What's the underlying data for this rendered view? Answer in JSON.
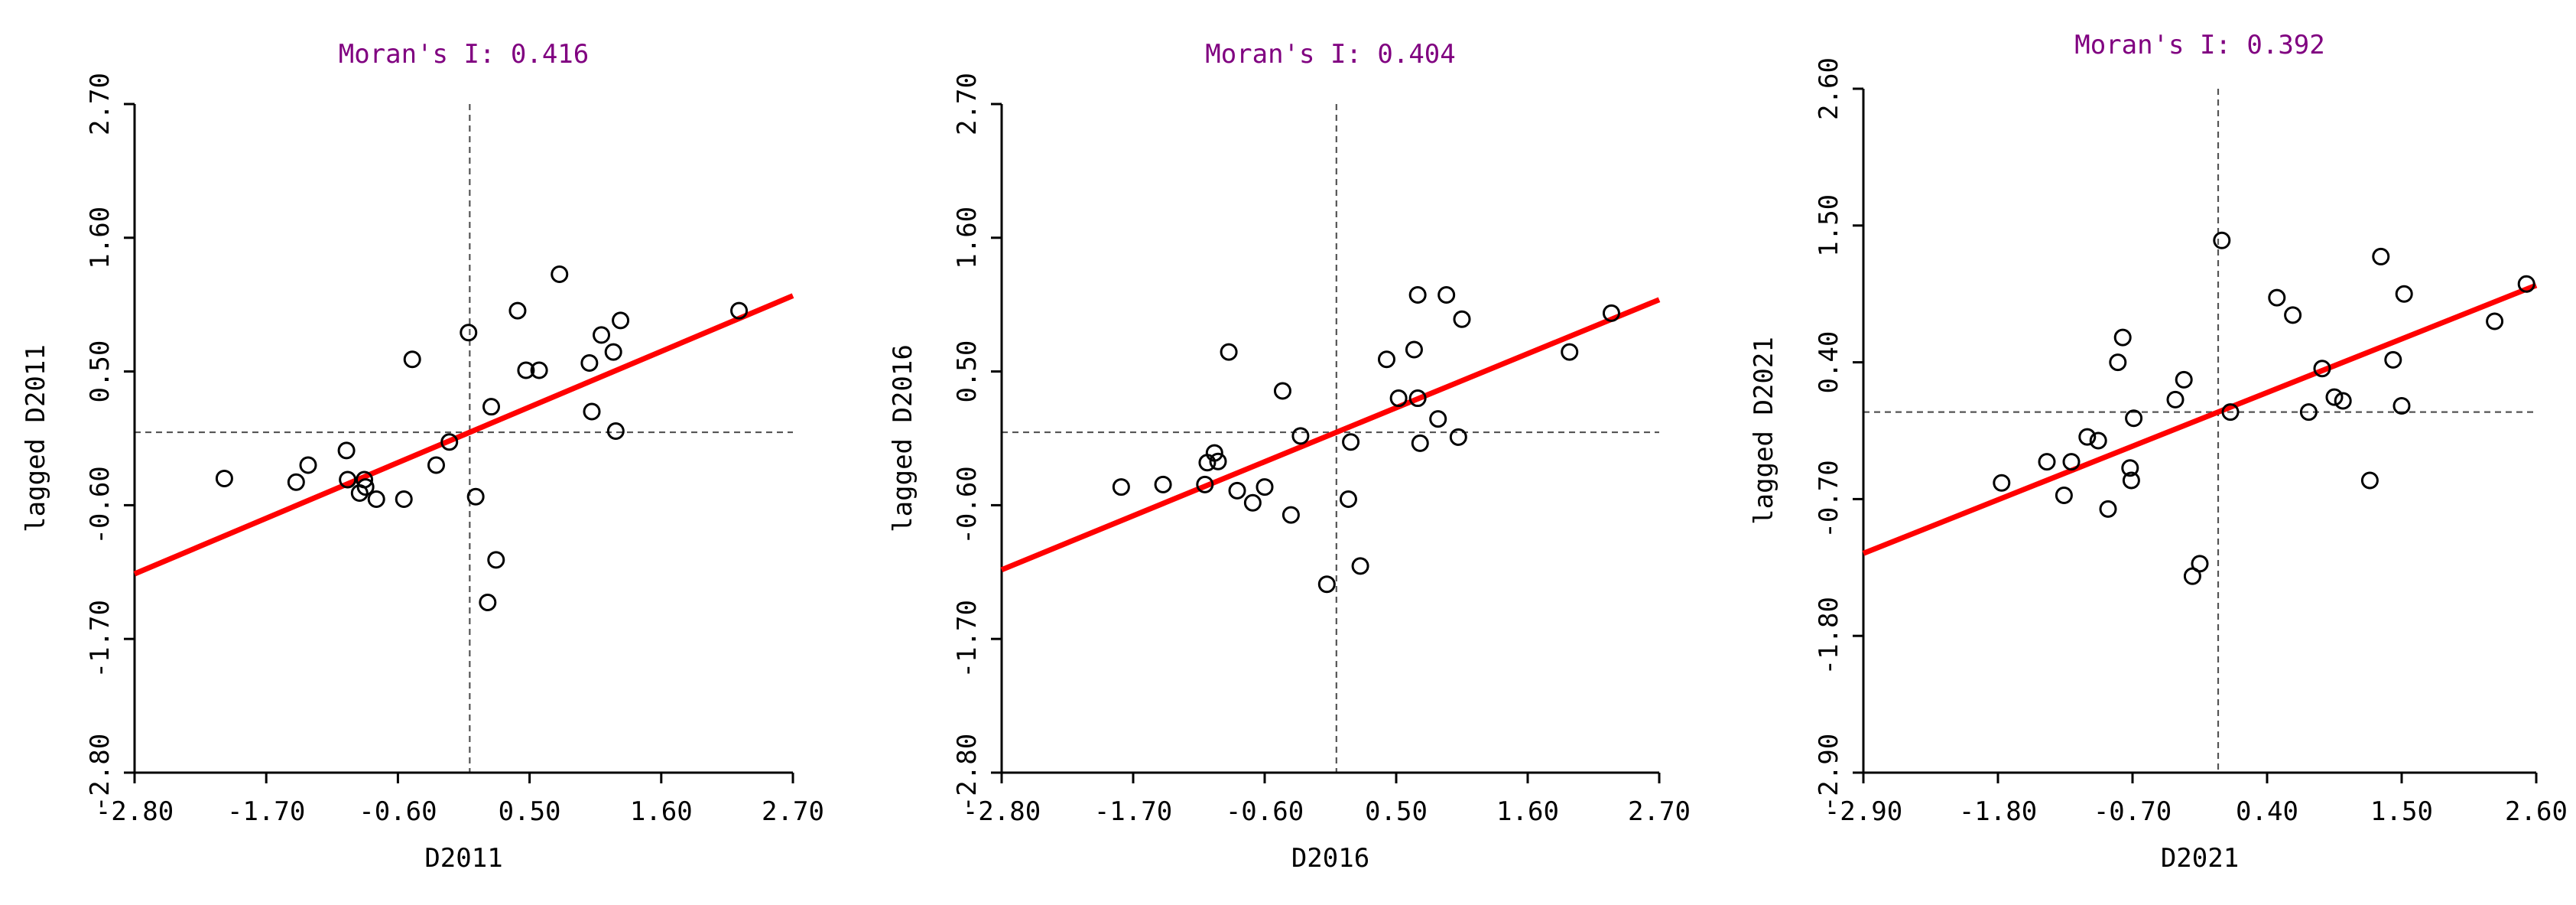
{
  "chart_data": [
    {
      "type": "scatter",
      "title": "Moran's I: 0.416",
      "xlabel": "D2011",
      "ylabel": "lagged D2011",
      "xlim": [
        -2.8,
        2.7
      ],
      "ylim": [
        -2.8,
        2.7
      ],
      "xticks": [
        "-2.80",
        "-1.70",
        "-0.60",
        "0.50",
        "1.60",
        "2.70"
      ],
      "yticks": [
        "-2.80",
        "-1.70",
        "-0.60",
        "0.50",
        "1.60",
        "2.70"
      ],
      "crosshair": [
        0,
        0
      ],
      "slope": 0.416,
      "points": [
        [
          -2.05,
          -0.38
        ],
        [
          -1.45,
          -0.41
        ],
        [
          -1.35,
          -0.27
        ],
        [
          -1.03,
          -0.15
        ],
        [
          -1.02,
          -0.39
        ],
        [
          -0.92,
          -0.5
        ],
        [
          -0.88,
          -0.39
        ],
        [
          -0.87,
          -0.45
        ],
        [
          -0.78,
          -0.55
        ],
        [
          -0.55,
          -0.55
        ],
        [
          -0.48,
          0.6
        ],
        [
          -0.28,
          -0.27
        ],
        [
          -0.17,
          -0.08
        ],
        [
          -0.01,
          0.82
        ],
        [
          0.05,
          -0.53
        ],
        [
          0.15,
          -1.4
        ],
        [
          0.18,
          0.21
        ],
        [
          0.22,
          -1.05
        ],
        [
          0.4,
          1.0
        ],
        [
          0.47,
          0.51
        ],
        [
          0.58,
          0.51
        ],
        [
          0.75,
          1.3
        ],
        [
          1.0,
          0.57
        ],
        [
          1.02,
          0.17
        ],
        [
          1.1,
          0.8
        ],
        [
          1.2,
          0.66
        ],
        [
          1.22,
          0.01
        ],
        [
          1.26,
          0.92
        ],
        [
          2.25,
          1.0
        ]
      ]
    },
    {
      "type": "scatter",
      "title": "Moran's I: 0.404",
      "xlabel": "D2016",
      "ylabel": "lagged D2016",
      "xlim": [
        -2.8,
        2.7
      ],
      "ylim": [
        -2.8,
        2.7
      ],
      "xticks": [
        "-2.80",
        "-1.70",
        "-0.60",
        "0.50",
        "1.60",
        "2.70"
      ],
      "yticks": [
        "-2.80",
        "-1.70",
        "-0.60",
        "0.50",
        "1.60",
        "2.70"
      ],
      "crosshair": [
        0,
        0
      ],
      "slope": 0.404,
      "points": [
        [
          -1.8,
          -0.45
        ],
        [
          -1.45,
          -0.43
        ],
        [
          -1.1,
          -0.43
        ],
        [
          -1.08,
          -0.25
        ],
        [
          -1.02,
          -0.17
        ],
        [
          -0.99,
          -0.24
        ],
        [
          -0.9,
          0.66
        ],
        [
          -0.83,
          -0.48
        ],
        [
          -0.7,
          -0.58
        ],
        [
          -0.6,
          -0.45
        ],
        [
          -0.45,
          0.34
        ],
        [
          -0.38,
          -0.68
        ],
        [
          -0.3,
          -0.03
        ],
        [
          -0.08,
          -1.25
        ],
        [
          0.1,
          -0.55
        ],
        [
          0.12,
          -0.08
        ],
        [
          0.2,
          -1.1
        ],
        [
          0.42,
          0.6
        ],
        [
          0.52,
          0.28
        ],
        [
          0.65,
          0.68
        ],
        [
          0.68,
          0.28
        ],
        [
          0.68,
          1.13
        ],
        [
          0.7,
          -0.09
        ],
        [
          0.85,
          0.11
        ],
        [
          0.92,
          1.13
        ],
        [
          1.02,
          -0.04
        ],
        [
          1.05,
          0.93
        ],
        [
          1.95,
          0.66
        ],
        [
          2.3,
          0.98
        ]
      ]
    },
    {
      "type": "scatter",
      "title": "Moran's I: 0.392",
      "xlabel": "D2021",
      "ylabel": "lagged D2021",
      "xlim": [
        -2.9,
        2.6
      ],
      "ylim": [
        -2.9,
        2.6
      ],
      "xticks": [
        "-2.90",
        "-1.80",
        "-0.70",
        "0.40",
        "1.50",
        "2.60"
      ],
      "yticks": [
        "-2.90",
        "-1.80",
        "-0.70",
        "0.40",
        "1.50",
        "2.60"
      ],
      "crosshair": [
        0,
        0
      ],
      "slope": 0.392,
      "points": [
        [
          -1.77,
          -0.57
        ],
        [
          -1.4,
          -0.4
        ],
        [
          -1.26,
          -0.67
        ],
        [
          -1.2,
          -0.4
        ],
        [
          -1.07,
          -0.2
        ],
        [
          -0.98,
          -0.23
        ],
        [
          -0.9,
          -0.78
        ],
        [
          -0.82,
          0.4
        ],
        [
          -0.78,
          0.6
        ],
        [
          -0.72,
          -0.45
        ],
        [
          -0.71,
          -0.55
        ],
        [
          -0.69,
          -0.05
        ],
        [
          -0.35,
          0.1
        ],
        [
          -0.28,
          0.26
        ],
        [
          -0.21,
          -1.32
        ],
        [
          -0.15,
          -1.22
        ],
        [
          0.03,
          1.38
        ],
        [
          0.1,
          0.0
        ],
        [
          0.48,
          0.92
        ],
        [
          0.61,
          0.78
        ],
        [
          0.74,
          0.0
        ],
        [
          0.85,
          0.35
        ],
        [
          0.95,
          0.12
        ],
        [
          1.02,
          0.09
        ],
        [
          1.24,
          -0.55
        ],
        [
          1.33,
          1.25
        ],
        [
          1.43,
          0.42
        ],
        [
          1.5,
          0.05
        ],
        [
          1.52,
          0.95
        ],
        [
          2.26,
          0.73
        ],
        [
          2.52,
          1.03
        ]
      ]
    }
  ]
}
